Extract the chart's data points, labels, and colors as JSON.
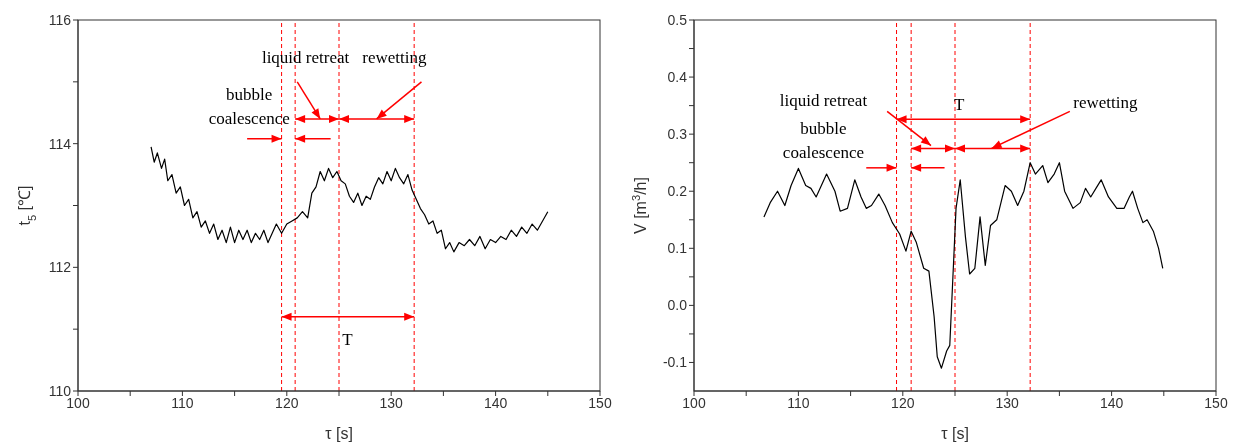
{
  "chart_data": [
    {
      "type": "line",
      "xlabel": "τ [s]",
      "ylabel": "t$_{5}$ [℃]",
      "xlim": [
        100,
        150
      ],
      "ylim": [
        110,
        116
      ],
      "xticks": [
        100,
        {
          "value": 105,
          "label": null
        },
        110,
        {
          "value": 115,
          "label": null
        },
        120,
        {
          "value": 125,
          "label": null
        },
        130,
        {
          "value": 135,
          "label": null
        },
        140,
        {
          "value": 145,
          "label": null
        },
        150
      ],
      "yticks": [
        110,
        {
          "value": 111,
          "label": null
        },
        112,
        {
          "value": 113,
          "label": null
        },
        114,
        {
          "value": 115,
          "label": null
        },
        116
      ],
      "marker": "none",
      "line_style": "solid",
      "series": [
        {
          "color": "#000000",
          "x": [
            107.0,
            107.3,
            107.6,
            108.0,
            108.3,
            108.6,
            109.0,
            109.4,
            109.8,
            110.2,
            110.6,
            111.0,
            111.4,
            111.8,
            112.2,
            112.6,
            113.0,
            113.4,
            113.8,
            114.2,
            114.6,
            115.0,
            115.4,
            115.8,
            116.2,
            116.6,
            117.0,
            117.4,
            117.8,
            118.2,
            118.6,
            119.0,
            119.5,
            120.0,
            120.5,
            121.0,
            121.5,
            122.0,
            122.4,
            122.8,
            123.2,
            123.6,
            124.0,
            124.4,
            124.8,
            125.2,
            125.6,
            126.0,
            126.4,
            126.8,
            127.2,
            127.6,
            128.0,
            128.4,
            128.8,
            129.2,
            129.6,
            130.0,
            130.4,
            130.8,
            131.2,
            131.6,
            132.0,
            132.4,
            132.8,
            133.2,
            133.6,
            134.0,
            134.4,
            134.8,
            135.2,
            135.6,
            136.0,
            136.5,
            137.0,
            137.5,
            138.0,
            138.5,
            139.0,
            139.5,
            140.0,
            140.5,
            141.0,
            141.5,
            142.0,
            142.5,
            143.0,
            143.5,
            144.0,
            144.5,
            145.0
          ],
          "values": [
            113.95,
            113.7,
            113.85,
            113.6,
            113.75,
            113.4,
            113.5,
            113.2,
            113.3,
            113.0,
            113.1,
            112.8,
            112.9,
            112.65,
            112.75,
            112.55,
            112.7,
            112.45,
            112.6,
            112.4,
            112.65,
            112.4,
            112.6,
            112.45,
            112.6,
            112.4,
            112.55,
            112.45,
            112.6,
            112.4,
            112.55,
            112.7,
            112.55,
            112.7,
            112.75,
            112.8,
            112.9,
            112.8,
            113.2,
            113.3,
            113.55,
            113.4,
            113.6,
            113.45,
            113.55,
            113.4,
            113.35,
            113.15,
            113.05,
            113.2,
            113.0,
            113.15,
            113.1,
            113.3,
            113.45,
            113.35,
            113.55,
            113.4,
            113.6,
            113.45,
            113.35,
            113.5,
            113.25,
            113.1,
            112.95,
            112.85,
            112.7,
            112.75,
            112.55,
            112.6,
            112.3,
            112.4,
            112.25,
            112.4,
            112.35,
            112.45,
            112.35,
            112.5,
            112.3,
            112.45,
            112.4,
            112.5,
            112.45,
            112.6,
            112.5,
            112.65,
            112.55,
            112.7,
            112.6,
            112.75,
            112.9
          ]
        }
      ],
      "ref_lines": [
        {
          "axis": "x",
          "value": 119.5,
          "color": "#ff0000",
          "line_style": "dashed"
        },
        {
          "axis": "x",
          "value": 120.8,
          "color": "#ff0000",
          "line_style": "dashed"
        },
        {
          "axis": "x",
          "value": 125.0,
          "color": "#ff0000",
          "line_style": "dashed"
        },
        {
          "axis": "x",
          "value": 132.2,
          "color": "#ff0000",
          "line_style": "dashed"
        }
      ],
      "annotations": [
        "liquid retreat",
        "rewetting",
        {
          "text": "bubble coalescence",
          "x": 119.5,
          "y": 114.08
        },
        "T"
      ]
    },
    {
      "type": "line",
      "xlabel": "τ [s]",
      "ylabel": "V [m$^{3}$/h]",
      "xlim": [
        100,
        150
      ],
      "ylim": [
        -0.15,
        0.5
      ],
      "xticks": [
        100,
        {
          "value": 105,
          "label": null
        },
        110,
        {
          "value": 115,
          "label": null
        },
        120,
        {
          "value": 125,
          "label": null
        },
        130,
        {
          "value": 135,
          "label": null
        },
        140,
        {
          "value": 145,
          "label": null
        },
        150
      ],
      "yticks": [
        {
          "value": -0.1,
          "label": "-0.1"
        },
        {
          "value": -0.05,
          "label": null
        },
        {
          "value": 0,
          "label": "0.0"
        },
        {
          "value": 0.05,
          "label": null
        },
        {
          "value": 0.1,
          "label": "0.1"
        },
        {
          "value": 0.15,
          "label": null
        },
        {
          "value": 0.2,
          "label": "0.2"
        },
        {
          "value": 0.25,
          "label": null
        },
        {
          "value": 0.3,
          "label": "0.3"
        },
        {
          "value": 0.35,
          "label": null
        },
        {
          "value": 0.4,
          "label": "0.4"
        },
        {
          "value": 0.45,
          "label": null
        },
        {
          "value": 0.5,
          "label": "0.5"
        }
      ],
      "marker": "none",
      "line_style": "solid",
      "series": [
        {
          "color": "#000000",
          "x": [
            106.7,
            107.3,
            108.0,
            108.7,
            109.3,
            110.0,
            110.7,
            111.2,
            111.7,
            112.7,
            113.5,
            114.0,
            114.7,
            115.4,
            116.0,
            116.5,
            117.0,
            117.7,
            118.3,
            119.0,
            119.7,
            120.3,
            120.8,
            121.3,
            122.0,
            122.5,
            123.0,
            123.3,
            123.7,
            124.2,
            124.5,
            124.8,
            125.1,
            125.5,
            126.0,
            126.4,
            126.9,
            127.4,
            127.9,
            128.4,
            129.0,
            129.8,
            130.4,
            131.0,
            131.6,
            132.2,
            132.7,
            133.4,
            133.9,
            134.5,
            135.0,
            135.5,
            136.3,
            137.0,
            137.5,
            138.0,
            138.5,
            139.0,
            139.7,
            140.5,
            141.2,
            141.7,
            142.0,
            142.5,
            143.0,
            143.4,
            144.0,
            144.5,
            144.9
          ],
          "values": [
            0.155,
            0.18,
            0.2,
            0.175,
            0.21,
            0.24,
            0.21,
            0.205,
            0.19,
            0.23,
            0.2,
            0.165,
            0.17,
            0.22,
            0.19,
            0.17,
            0.175,
            0.195,
            0.175,
            0.145,
            0.125,
            0.095,
            0.13,
            0.11,
            0.065,
            0.06,
            -0.02,
            -0.09,
            -0.11,
            -0.08,
            -0.07,
            0.05,
            0.17,
            0.22,
            0.12,
            0.055,
            0.065,
            0.155,
            0.07,
            0.14,
            0.15,
            0.21,
            0.2,
            0.175,
            0.2,
            0.25,
            0.23,
            0.245,
            0.215,
            0.23,
            0.25,
            0.2,
            0.17,
            0.18,
            0.205,
            0.19,
            0.205,
            0.22,
            0.19,
            0.17,
            0.17,
            0.19,
            0.2,
            0.17,
            0.145,
            0.15,
            0.13,
            0.1,
            0.065
          ]
        }
      ],
      "ref_lines": [
        {
          "axis": "x",
          "value": 119.4,
          "color": "#ff0000",
          "line_style": "dashed"
        },
        {
          "axis": "x",
          "value": 120.8,
          "color": "#ff0000",
          "line_style": "dashed"
        },
        {
          "axis": "x",
          "value": 125.0,
          "color": "#ff0000",
          "line_style": "dashed"
        },
        {
          "axis": "x",
          "value": 132.2,
          "color": "#ff0000",
          "line_style": "dashed"
        }
      ],
      "annotations": [
        "liquid retreat",
        "rewetting",
        {
          "text": "bubble coalescence",
          "x": 119.4,
          "y": 0.241
        },
        "T"
      ]
    }
  ]
}
